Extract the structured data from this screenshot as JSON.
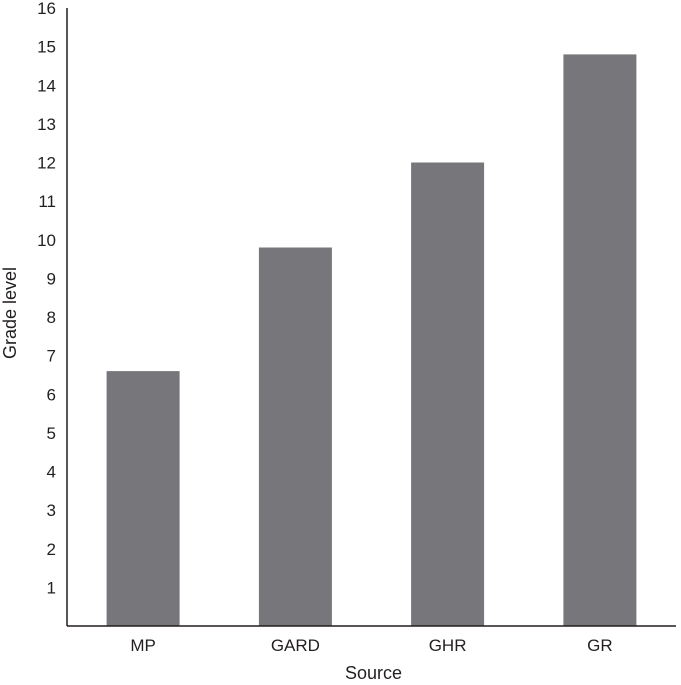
{
  "chart_data": {
    "type": "bar",
    "title": "",
    "xlabel": "Source",
    "ylabel": "Grade level",
    "categories": [
      "MP",
      "GARD",
      "GHR",
      "GR"
    ],
    "values": [
      6.6,
      9.8,
      12.0,
      14.8
    ],
    "ylim": [
      0,
      16
    ],
    "yticks": [
      1,
      2,
      3,
      4,
      5,
      6,
      7,
      8,
      9,
      10,
      11,
      12,
      13,
      14,
      15,
      16
    ],
    "grid": false,
    "legend": "none",
    "bar_color": "#77777b",
    "axis_color": "#231f20"
  }
}
